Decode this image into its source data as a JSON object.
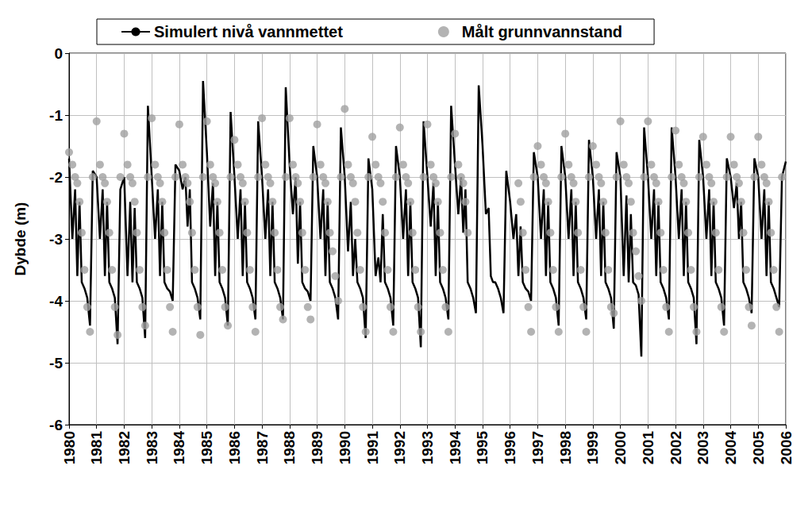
{
  "chart_data": {
    "type": "line",
    "y_label": "Dybde (m)",
    "xlim": [
      1980,
      2006
    ],
    "xticks": [
      1980,
      1981,
      1982,
      1983,
      1984,
      1985,
      1986,
      1987,
      1988,
      1989,
      1990,
      1991,
      1992,
      1993,
      1994,
      1995,
      1996,
      1997,
      1998,
      1999,
      2000,
      2001,
      2002,
      2003,
      2004,
      2005,
      2006
    ],
    "ylim": [
      -6,
      0
    ],
    "yticks": [
      -6,
      -5,
      -4,
      -3,
      -2,
      -1,
      0
    ],
    "grid": true,
    "legend": "top",
    "x": [
      1980,
      1980.12,
      1980.22,
      1980.3,
      1980.38,
      1980.46,
      1980.56,
      1980.66,
      1980.76,
      1980.86,
      1981,
      1981.12,
      1981.22,
      1981.3,
      1981.38,
      1981.46,
      1981.56,
      1981.66,
      1981.76,
      1981.86,
      1982,
      1982.12,
      1982.22,
      1982.3,
      1982.38,
      1982.46,
      1982.56,
      1982.66,
      1982.76,
      1982.86,
      1983,
      1983.12,
      1983.22,
      1983.3,
      1983.38,
      1983.46,
      1983.56,
      1983.66,
      1983.76,
      1983.86,
      1984,
      1984.12,
      1984.22,
      1984.3,
      1984.38,
      1984.46,
      1984.56,
      1984.66,
      1984.76,
      1984.86,
      1985,
      1985.12,
      1985.22,
      1985.3,
      1985.38,
      1985.46,
      1985.56,
      1985.66,
      1985.76,
      1985.86,
      1986,
      1986.12,
      1986.22,
      1986.3,
      1986.38,
      1986.46,
      1986.56,
      1986.66,
      1986.76,
      1986.86,
      1987,
      1987.12,
      1987.22,
      1987.3,
      1987.38,
      1987.46,
      1987.56,
      1987.66,
      1987.76,
      1987.86,
      1988,
      1988.12,
      1988.22,
      1988.3,
      1988.38,
      1988.46,
      1988.56,
      1988.66,
      1988.76,
      1988.86,
      1989,
      1989.12,
      1989.22,
      1989.3,
      1989.38,
      1989.46,
      1989.56,
      1989.66,
      1989.76,
      1989.86,
      1990,
      1990.12,
      1990.22,
      1990.3,
      1990.38,
      1990.46,
      1990.56,
      1990.66,
      1990.76,
      1990.86,
      1991,
      1991.12,
      1991.22,
      1991.3,
      1991.38,
      1991.46,
      1991.56,
      1991.66,
      1991.76,
      1991.86,
      1992,
      1992.12,
      1992.22,
      1992.3,
      1992.38,
      1992.46,
      1992.56,
      1992.66,
      1992.76,
      1992.86,
      1993,
      1993.12,
      1993.22,
      1993.3,
      1993.38,
      1993.46,
      1993.56,
      1993.66,
      1993.76,
      1993.86,
      1994,
      1994.12,
      1994.22,
      1994.3,
      1994.38,
      1994.46,
      1994.56,
      1994.66,
      1994.76,
      1994.86,
      1995,
      1995.12,
      1995.22,
      1995.3,
      1995.38,
      1995.46,
      1995.56,
      1995.66,
      1995.76,
      1995.86,
      1996,
      1996.12,
      1996.22,
      1996.3,
      1996.38,
      1996.46,
      1996.56,
      1996.66,
      1996.76,
      1996.86,
      1997,
      1997.12,
      1997.22,
      1997.3,
      1997.38,
      1997.46,
      1997.56,
      1997.66,
      1997.76,
      1997.86,
      1998,
      1998.12,
      1998.22,
      1998.3,
      1998.38,
      1998.46,
      1998.56,
      1998.66,
      1998.76,
      1998.86,
      1999,
      1999.12,
      1999.22,
      1999.3,
      1999.38,
      1999.46,
      1999.56,
      1999.66,
      1999.76,
      1999.86,
      2000,
      2000.12,
      2000.22,
      2000.3,
      2000.38,
      2000.46,
      2000.56,
      2000.66,
      2000.76,
      2000.86,
      2001,
      2001.12,
      2001.22,
      2001.3,
      2001.38,
      2001.46,
      2001.56,
      2001.66,
      2001.76,
      2001.86,
      2002,
      2002.12,
      2002.22,
      2002.3,
      2002.38,
      2002.46,
      2002.56,
      2002.66,
      2002.76,
      2002.86,
      2003,
      2003.12,
      2003.22,
      2003.3,
      2003.38,
      2003.46,
      2003.56,
      2003.66,
      2003.76,
      2003.86,
      2004,
      2004.12,
      2004.22,
      2004.3,
      2004.38,
      2004.46,
      2004.56,
      2004.66,
      2004.76,
      2004.86,
      2005,
      2005.12,
      2005.22,
      2005.3,
      2005.38,
      2005.46,
      2005.56,
      2005.66,
      2005.76,
      2005.86,
      2006
    ],
    "series": [
      {
        "name": "Simulert nivå vannmettet",
        "type": "line",
        "color": "#000000",
        "line_style": "solid",
        "marker": "none",
        "values": [
          -1.7,
          -3.0,
          -2.2,
          -3.6,
          -2.4,
          -3.7,
          -3.8,
          -3.95,
          -4.4,
          -1.9,
          -2.0,
          -3.0,
          -2.2,
          -3.6,
          -2.4,
          -3.7,
          -3.8,
          -3.95,
          -4.7,
          -2.2,
          -2.0,
          -3.6,
          -2.4,
          -3.7,
          -2.5,
          -3.7,
          -3.8,
          -3.95,
          -4.6,
          -0.85,
          -2.0,
          -3.0,
          -2.2,
          -3.6,
          -2.4,
          -3.7,
          -3.8,
          -3.85,
          -4.0,
          -1.8,
          -1.9,
          -2.2,
          -2.0,
          -2.8,
          -2.2,
          -3.7,
          -3.8,
          -3.95,
          -4.3,
          -0.45,
          -1.6,
          -2.8,
          -2.1,
          -3.6,
          -2.4,
          -3.7,
          -3.8,
          -3.95,
          -4.4,
          -0.95,
          -2.0,
          -3.0,
          -2.2,
          -3.6,
          -2.4,
          -3.7,
          -3.8,
          -3.95,
          -4.3,
          -1.1,
          -2.0,
          -3.0,
          -2.2,
          -3.6,
          -2.4,
          -3.7,
          -3.8,
          -3.95,
          -4.3,
          -0.55,
          -1.8,
          -2.6,
          -2.0,
          -3.4,
          -2.4,
          -3.7,
          -3.8,
          -3.85,
          -4.0,
          -1.5,
          -2.0,
          -3.0,
          -2.2,
          -3.6,
          -2.4,
          -3.7,
          -3.8,
          -3.95,
          -4.3,
          -1.2,
          -2.0,
          -3.2,
          -2.4,
          -3.6,
          -3.0,
          -3.7,
          -3.8,
          -3.95,
          -4.6,
          -1.7,
          -2.2,
          -3.6,
          -3.3,
          -3.7,
          -2.6,
          -3.7,
          -3.8,
          -3.95,
          -4.4,
          -1.5,
          -2.0,
          -3.0,
          -2.2,
          -3.6,
          -2.4,
          -3.7,
          -3.8,
          -3.95,
          -4.75,
          -1.1,
          -2.0,
          -2.8,
          -2.1,
          -3.6,
          -2.4,
          -3.7,
          -3.8,
          -3.95,
          -4.3,
          -0.85,
          -1.8,
          -2.6,
          -2.0,
          -2.9,
          -2.2,
          -3.7,
          -3.8,
          -3.95,
          -4.2,
          -0.52,
          -1.5,
          -2.6,
          -2.5,
          -3.6,
          -3.7,
          -3.7,
          -3.8,
          -3.95,
          -4.2,
          -1.9,
          -2.4,
          -3.0,
          -2.6,
          -3.6,
          -2.8,
          -3.7,
          -3.8,
          -3.85,
          -4.0,
          -1.6,
          -2.0,
          -3.0,
          -2.2,
          -3.6,
          -2.4,
          -3.7,
          -3.8,
          -3.95,
          -4.4,
          -1.5,
          -2.0,
          -3.0,
          -2.2,
          -3.6,
          -2.4,
          -3.7,
          -3.8,
          -3.95,
          -4.3,
          -1.4,
          -2.0,
          -3.0,
          -2.2,
          -3.6,
          -2.4,
          -3.7,
          -3.8,
          -3.95,
          -4.45,
          -1.6,
          -2.0,
          -3.6,
          -2.3,
          -3.7,
          -2.6,
          -3.7,
          -3.75,
          -3.9,
          -4.9,
          -1.2,
          -2.0,
          -3.0,
          -2.2,
          -3.6,
          -2.4,
          -3.7,
          -3.8,
          -3.95,
          -4.3,
          -1.2,
          -2.0,
          -3.0,
          -2.2,
          -3.6,
          -2.4,
          -3.7,
          -3.8,
          -3.95,
          -4.7,
          -1.4,
          -2.0,
          -3.0,
          -2.2,
          -3.6,
          -2.4,
          -3.7,
          -3.8,
          -3.95,
          -4.4,
          -1.7,
          -2.0,
          -2.5,
          -2.1,
          -3.0,
          -2.4,
          -3.7,
          -3.8,
          -3.95,
          -4.2,
          -1.7,
          -2.0,
          -3.0,
          -2.2,
          -3.6,
          -2.4,
          -3.7,
          -3.8,
          -3.95,
          -4.1,
          -2.0,
          -1.75
        ]
      },
      {
        "name": "Målt grunnvannstand",
        "type": "scatter",
        "color": "#a0a0a0",
        "marker": "circle",
        "values": [
          -1.6,
          -1.8,
          -2.0,
          -2.1,
          -2.4,
          -2.9,
          -3.5,
          -4.1,
          -4.5,
          -2.0,
          -1.1,
          -1.8,
          -2.0,
          -2.1,
          -2.4,
          -2.9,
          -3.5,
          -4.1,
          -4.55,
          -2.0,
          -1.3,
          -1.8,
          -2.0,
          -2.1,
          -2.4,
          -2.9,
          -3.5,
          -4.1,
          -4.4,
          -2.0,
          -1.05,
          -1.8,
          -2.0,
          -2.1,
          -2.4,
          -2.9,
          -3.5,
          -4.1,
          -4.5,
          -2.0,
          -1.15,
          -1.8,
          -2.0,
          -2.1,
          -2.4,
          -2.9,
          -3.5,
          -4.1,
          -4.55,
          -2.0,
          -1.1,
          -1.8,
          -2.0,
          -2.1,
          -2.4,
          -2.9,
          -3.5,
          -4.1,
          -4.4,
          -2.0,
          -1.4,
          -1.8,
          -2.0,
          -2.1,
          -2.4,
          -2.9,
          -3.5,
          -4.1,
          -4.5,
          -2.0,
          -1.05,
          -1.8,
          -2.0,
          -2.1,
          -2.4,
          -2.9,
          -3.5,
          -4.1,
          -4.3,
          -2.0,
          -1.05,
          -1.8,
          -2.0,
          -2.1,
          -2.4,
          -2.9,
          -3.5,
          -4.1,
          -4.3,
          -2.0,
          -1.15,
          -1.8,
          -2.0,
          -2.1,
          -2.4,
          -2.9,
          -3.2,
          -3.6,
          -4.0,
          -2.0,
          -0.9,
          -1.8,
          -2.0,
          -2.1,
          -2.4,
          -2.9,
          -3.5,
          -4.1,
          -4.5,
          -2.0,
          -1.35,
          -1.8,
          -2.0,
          -2.1,
          -2.4,
          -2.9,
          -3.5,
          -4.1,
          -4.5,
          -2.0,
          -1.2,
          -1.8,
          -2.0,
          -2.1,
          -2.4,
          -2.9,
          -3.5,
          -4.1,
          -4.5,
          -2.0,
          -1.15,
          -1.8,
          -2.0,
          -2.1,
          -2.4,
          -2.9,
          -3.5,
          -4.1,
          -4.5,
          -2.0,
          -1.3,
          -1.8,
          -2.0,
          -2.1,
          -2.4,
          -2.9,
          null,
          null,
          null,
          null,
          null,
          null,
          null,
          null,
          null,
          null,
          null,
          null,
          null,
          null,
          null,
          null,
          null,
          -2.1,
          -2.4,
          -2.9,
          -3.5,
          -4.1,
          -4.5,
          -2.0,
          -1.5,
          -1.8,
          -2.0,
          -2.1,
          -2.4,
          -2.9,
          -3.5,
          -4.1,
          -4.5,
          -2.0,
          -1.3,
          -1.8,
          -2.0,
          -2.1,
          -2.4,
          -2.9,
          -3.5,
          -4.1,
          -4.5,
          -2.0,
          -1.5,
          -1.8,
          -2.0,
          -2.1,
          -2.4,
          -2.9,
          -3.5,
          -4.1,
          -4.2,
          -2.0,
          -1.1,
          -1.8,
          -2.0,
          -2.1,
          -2.4,
          -2.9,
          -3.2,
          -3.6,
          -4.0,
          -2.0,
          -1.1,
          -1.8,
          -2.0,
          -2.1,
          -2.4,
          -2.9,
          -3.5,
          -4.1,
          -4.5,
          -2.0,
          -1.25,
          -1.8,
          -2.0,
          -2.1,
          -2.4,
          -2.9,
          -3.5,
          -4.1,
          -4.5,
          -2.0,
          -1.35,
          -1.8,
          -2.0,
          -2.1,
          -2.4,
          -2.9,
          -3.5,
          -4.1,
          -4.5,
          -2.0,
          -1.35,
          -1.8,
          -2.0,
          -2.1,
          -2.4,
          -2.9,
          -3.5,
          -4.1,
          -4.4,
          -2.0,
          -1.35,
          -1.8,
          -2.0,
          -2.1,
          -2.4,
          -2.9,
          -3.5,
          -4.1,
          -4.5,
          -2.0,
          null
        ]
      }
    ]
  }
}
